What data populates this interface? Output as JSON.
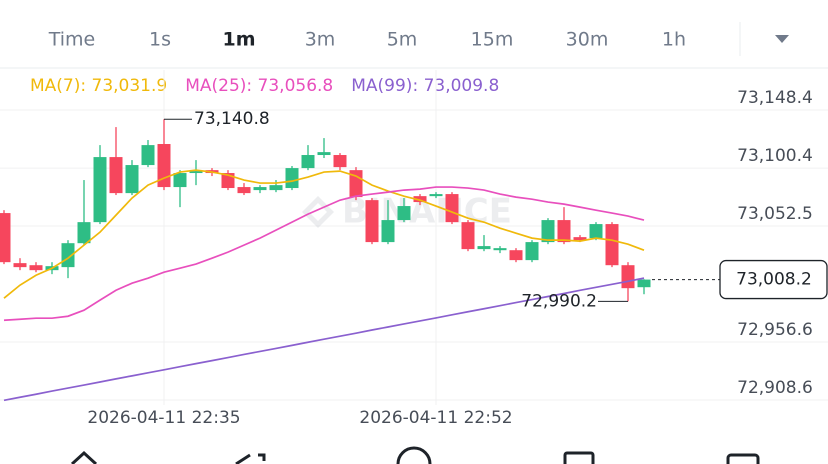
{
  "tabs": [
    "Time",
    "1s",
    "1m",
    "3m",
    "5m",
    "15m",
    "30m",
    "1h"
  ],
  "active_tab": "1m",
  "watermark": "BINANCE",
  "chart_data": {
    "type": "candlestick",
    "categories": [
      null,
      null,
      null,
      null,
      null,
      null,
      null,
      null,
      null,
      null,
      "2026-04-11 22:35",
      null,
      null,
      null,
      null,
      null,
      null,
      null,
      null,
      null,
      null,
      null,
      null,
      null,
      null,
      null,
      null,
      "2026-04-11 22:52",
      null,
      null,
      null,
      null,
      null,
      null,
      null,
      null,
      null,
      null,
      null,
      null,
      null
    ],
    "open": [
      73063.2,
      73021.8,
      73020.1,
      73016.0,
      73018.5,
      73038.3,
      73055.7,
      73109.5,
      73079.7,
      73102.9,
      73120.3,
      73084.7,
      73096.3,
      73098.7,
      73096.3,
      73084.7,
      73082.2,
      73082.2,
      73083.9,
      73100.4,
      73111.2,
      73111.2,
      73098.7,
      73073.9,
      73039.2,
      73057.4,
      73077.2,
      73077.2,
      73078.9,
      73055.7,
      73033.4,
      73032.5,
      73032.5,
      73024.3,
      73039.2,
      73057.4,
      73043.3,
      73042.5,
      73054.1,
      73020.1,
      73001.9
    ],
    "high": [
      73065.6,
      73025.9,
      73022.6,
      73022.6,
      73040.8,
      73090.5,
      73119.4,
      73134.3,
      73107.0,
      73123.6,
      73140.8,
      73098.7,
      73107.0,
      73100.4,
      73098.7,
      73088.0,
      73086.3,
      73090.5,
      73102.1,
      73119.4,
      73125.2,
      73112.8,
      73101.2,
      73075.6,
      73073.9,
      73075.6,
      73078.9,
      73080.5,
      73080.5,
      73057.4,
      73045.0,
      73035.9,
      73034.2,
      73040.8,
      73059.0,
      73068.1,
      73045.0,
      73055.7,
      73055.7,
      73022.6,
      73008.5
    ],
    "low": [
      73021.0,
      73016.0,
      73014.3,
      73012.7,
      73009.4,
      73036.7,
      73054.1,
      73078.1,
      73078.1,
      73101.2,
      73082.2,
      73068.1,
      73086.3,
      73093.8,
      73082.2,
      73078.1,
      73079.7,
      73080.5,
      73082.2,
      73098.7,
      73108.7,
      73098.7,
      73073.9,
      73037.5,
      73037.5,
      73055.7,
      73069.8,
      73075.6,
      73054.1,
      73031.7,
      73031.7,
      73030.1,
      73022.6,
      73022.6,
      73037.5,
      73037.5,
      73039.2,
      73040.8,
      73018.5,
      72990.2,
      72996.1
    ],
    "close": [
      73022.6,
      73018.5,
      73016.0,
      73019.3,
      73038.3,
      73055.7,
      73109.5,
      73079.7,
      73102.9,
      73119.4,
      73084.7,
      73096.3,
      73097.9,
      73096.3,
      73083.9,
      73079.7,
      73084.7,
      73086.3,
      73100.4,
      73111.2,
      73113.6,
      73101.2,
      73076.4,
      73039.2,
      73057.4,
      73069.0,
      73072.3,
      73078.9,
      73055.7,
      73033.4,
      73035.9,
      73034.2,
      73024.3,
      73039.2,
      73057.4,
      73039.2,
      73040.8,
      73054.1,
      73020.1,
      73001.1,
      73008.2
    ],
    "up_color": "#2ebd85",
    "down_color": "#f6465d",
    "series": [
      {
        "name": "MA(7): 73,031.9",
        "color": "#f0b90b",
        "values": [
          72992.8,
          73003.6,
          73011.8,
          73017.6,
          73025.9,
          73036.7,
          73047.4,
          73061.5,
          73075.6,
          73086.3,
          73092.1,
          73097.1,
          73098.7,
          73097.1,
          73094.6,
          73090.5,
          73088.0,
          73088.0,
          73089.6,
          73093.0,
          73097.1,
          73097.9,
          73093.8,
          73086.3,
          73081.4,
          73077.2,
          73073.9,
          73069.0,
          73064.0,
          73059.0,
          73055.7,
          73050.7,
          73046.6,
          73042.5,
          73040.8,
          73040.8,
          73040.0,
          73042.5,
          73040.8,
          73037.5,
          73032.5
        ]
      },
      {
        "name": "MA(25): 73,056.8",
        "color": "#e84fbd",
        "values": [
          72974.6,
          72975.4,
          72976.3,
          72976.3,
          72977.9,
          72982.9,
          72991.2,
          72999.4,
          73005.2,
          73009.4,
          73014.3,
          73017.6,
          73021.0,
          73025.9,
          73030.9,
          73036.7,
          73042.5,
          73049.1,
          73055.7,
          73062.3,
          73068.1,
          73073.9,
          73077.2,
          73078.9,
          73080.5,
          73082.2,
          73083.0,
          73084.7,
          73084.7,
          73083.9,
          73082.2,
          73078.9,
          73076.4,
          73074.7,
          73072.3,
          73070.6,
          73068.1,
          73065.6,
          73063.2,
          73060.7,
          73057.4
        ]
      },
      {
        "name": "MA(99): 73,009.8",
        "color": "#8a60cf",
        "values": [
          72908.4,
          72910.9,
          72913.4,
          72916.0,
          72918.5,
          72921.0,
          72923.5,
          72926.1,
          72928.6,
          72931.1,
          72933.6,
          72936.2,
          72938.7,
          72941.2,
          72943.7,
          72946.3,
          72948.8,
          72951.3,
          72953.8,
          72956.4,
          72958.9,
          72961.4,
          72963.9,
          72966.5,
          72969.0,
          72971.5,
          72974.0,
          72976.5,
          72979.1,
          72981.6,
          72984.1,
          72986.6,
          72989.2,
          72991.7,
          72994.2,
          72996.7,
          72999.3,
          73001.8,
          73004.3,
          73006.8,
          73009.4
        ]
      }
    ],
    "ylim": [
      72904.5,
      73181.5
    ],
    "yticks": [
      {
        "value": 73148.4,
        "label": "73,148.4"
      },
      {
        "value": 73100.4,
        "label": "73,100.4"
      },
      {
        "value": 73052.5,
        "label": "73,052.5"
      },
      {
        "value": 72956.6,
        "label": "72,956.6"
      },
      {
        "value": 72908.6,
        "label": "72,908.6"
      }
    ],
    "grid": true,
    "max_label": "73,140.8",
    "min_label": "72,990.2",
    "last_price_label": "73,008.2"
  }
}
